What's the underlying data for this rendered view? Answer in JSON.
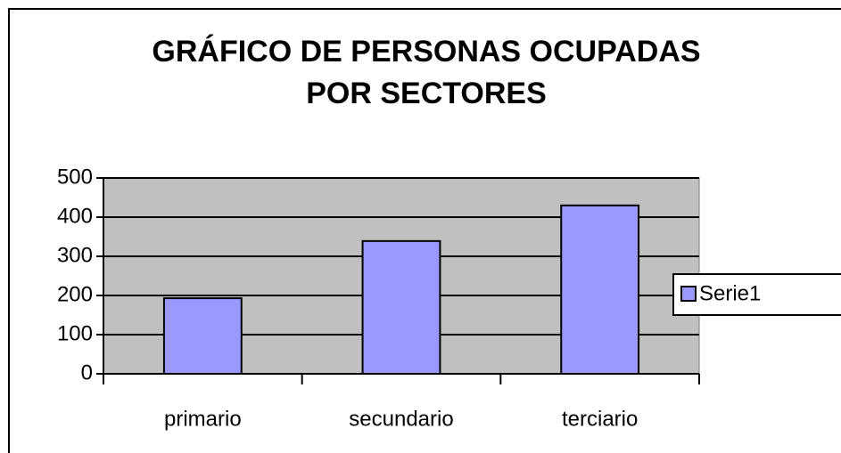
{
  "chart_data": {
    "type": "bar",
    "title": [
      "GRÁFICO DE PERSONAS OCUPADAS",
      "POR SECTORES"
    ],
    "categories": [
      "primario",
      "secundario",
      "terciario"
    ],
    "series": [
      {
        "name": "Serie1",
        "color": "#9999ff",
        "values": [
          193,
          339,
          430
        ]
      }
    ],
    "ylim": [
      0,
      500
    ],
    "yticks": [
      0,
      100,
      200,
      300,
      400,
      500
    ],
    "grid": true,
    "legend": "right",
    "plot_background": "#c0c0c0"
  }
}
